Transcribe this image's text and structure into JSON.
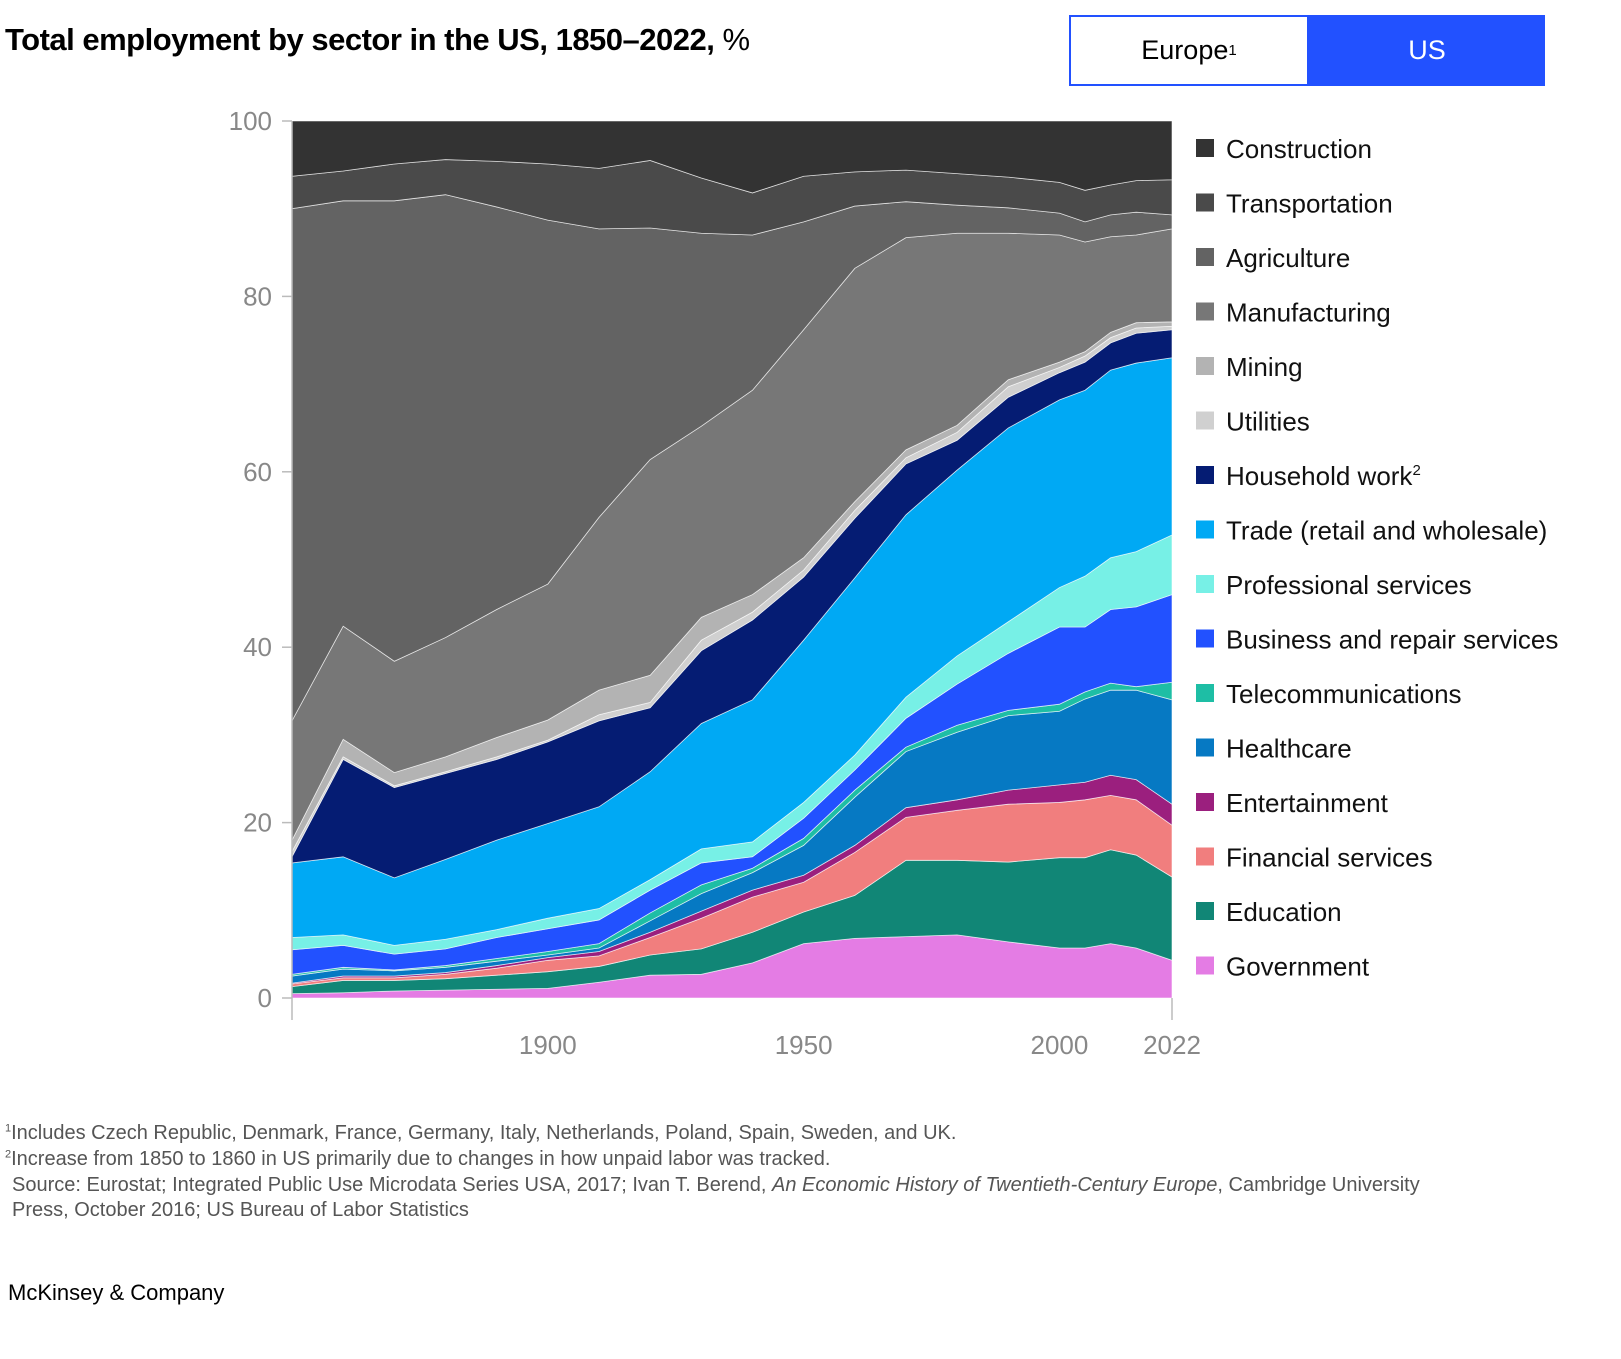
{
  "title": {
    "bold": "Total employment by sector in the US, 1850–2022,",
    "unit": " %"
  },
  "toggle": {
    "europe": "Europe",
    "europe_sup": "1",
    "us": "US",
    "selected": "US",
    "accent": "#2251ff"
  },
  "chart_data": {
    "type": "area",
    "stacked": true,
    "title": "Total employment by sector in the US, 1850–2022, %",
    "xlim": [
      1850,
      2022
    ],
    "ylim": [
      0,
      100
    ],
    "y_ticks": [
      "0",
      "20",
      "40",
      "60",
      "80",
      "100"
    ],
    "x_ticks": [
      "1900",
      "1950",
      "2000",
      "2022"
    ],
    "x_tick_values": [
      1900,
      1950,
      2000,
      2022
    ],
    "legend_position": "right",
    "x": [
      1850,
      1860,
      1870,
      1880,
      1890,
      1900,
      1910,
      1920,
      1930,
      1940,
      1950,
      1960,
      1970,
      1980,
      1990,
      2000,
      2005,
      2010,
      2015,
      2022
    ],
    "series": [
      {
        "name": "Government",
        "color": "#e47ce4",
        "values": [
          0.5,
          0.6,
          0.8,
          0.9,
          1.0,
          1.1,
          1.8,
          2.6,
          2.7,
          4.0,
          6.2,
          6.8,
          7.0,
          7.2,
          6.4,
          5.7,
          5.7,
          6.2,
          5.7,
          4.3
        ]
      },
      {
        "name": "Education",
        "color": "#118676",
        "values": [
          0.8,
          1.4,
          1.2,
          1.3,
          1.6,
          1.9,
          1.8,
          2.3,
          2.9,
          3.5,
          3.6,
          4.9,
          8.7,
          8.5,
          9.1,
          10.3,
          10.3,
          10.7,
          10.6,
          9.5
        ]
      },
      {
        "name": "Financial services",
        "color": "#f17e7e",
        "values": [
          0.3,
          0.3,
          0.3,
          0.5,
          0.8,
          1.3,
          1.2,
          2.0,
          3.5,
          4.0,
          3.4,
          4.9,
          4.9,
          5.7,
          6.6,
          6.3,
          6.6,
          6.2,
          6.3,
          5.9
        ]
      },
      {
        "name": "Entertainment",
        "color": "#9b1f7e",
        "values": [
          0.1,
          0.2,
          0.2,
          0.2,
          0.3,
          0.3,
          0.5,
          0.6,
          0.8,
          0.8,
          0.8,
          0.8,
          1.1,
          1.2,
          1.6,
          2.0,
          2.0,
          2.3,
          2.3,
          2.4
        ]
      },
      {
        "name": "Healthcare",
        "color": "#0679c3",
        "values": [
          0.8,
          0.8,
          0.6,
          0.6,
          0.5,
          0.3,
          0.4,
          1.3,
          2.0,
          2.0,
          3.4,
          5.5,
          6.4,
          7.7,
          8.5,
          8.4,
          9.5,
          9.7,
          10.2,
          11.9
        ]
      },
      {
        "name": "Telecommunications",
        "color": "#1ebea5",
        "values": [
          0.2,
          0.2,
          0.1,
          0.2,
          0.3,
          0.4,
          0.5,
          0.9,
          1.0,
          0.5,
          0.8,
          0.8,
          0.5,
          0.8,
          0.6,
          0.8,
          0.8,
          0.8,
          0.4,
          2.0
        ]
      },
      {
        "name": "Business and repair services",
        "color": "#2251ff",
        "values": [
          2.8,
          2.5,
          1.8,
          1.9,
          2.4,
          2.6,
          2.7,
          2.6,
          2.5,
          1.3,
          2.3,
          2.3,
          3.3,
          4.7,
          6.5,
          8.8,
          7.4,
          8.4,
          9.1,
          10.0
        ]
      },
      {
        "name": "Professional services",
        "color": "#77f0e6",
        "values": [
          1.4,
          1.2,
          1.0,
          1.1,
          0.9,
          1.2,
          1.3,
          1.2,
          1.6,
          1.7,
          1.8,
          1.7,
          2.4,
          3.2,
          3.6,
          4.5,
          5.8,
          5.9,
          6.3,
          6.8
        ]
      },
      {
        "name": "Trade (retail and wholesale)",
        "color": "#00a9f4",
        "values": [
          8.5,
          8.9,
          7.7,
          9.1,
          10.2,
          10.8,
          11.6,
          12.3,
          14.3,
          16.2,
          18.5,
          20.2,
          20.8,
          21.2,
          22.1,
          21.4,
          21.2,
          21.4,
          21.5,
          20.2
        ]
      },
      {
        "name": "Household work",
        "sup": "2",
        "color": "#051c73",
        "values": [
          0.7,
          11.1,
          10.3,
          9.8,
          9.2,
          9.3,
          9.8,
          7.3,
          8.3,
          9.1,
          7.2,
          6.8,
          5.8,
          3.4,
          3.5,
          3.1,
          3.2,
          3.1,
          3.4,
          3.2
        ]
      },
      {
        "name": "Utilities",
        "color": "#d0d0d0",
        "values": [
          0.6,
          0.3,
          0.2,
          0.2,
          0.3,
          0.2,
          0.7,
          0.6,
          1.2,
          0.9,
          0.8,
          0.9,
          0.7,
          0.9,
          1.2,
          0.6,
          0.7,
          0.6,
          0.6,
          0.4
        ]
      },
      {
        "name": "Mining",
        "color": "#b3b3b3",
        "values": [
          1.3,
          2.0,
          1.5,
          1.7,
          2.2,
          2.3,
          2.8,
          3.1,
          2.6,
          2.0,
          1.4,
          1.0,
          0.9,
          0.8,
          0.8,
          0.6,
          0.5,
          0.6,
          0.6,
          0.5
        ]
      },
      {
        "name": "Manufacturing",
        "color": "#777777",
        "values": [
          13.6,
          12.9,
          12.7,
          13.6,
          14.6,
          15.5,
          19.7,
          24.6,
          21.8,
          23.3,
          26.0,
          26.6,
          24.2,
          21.9,
          16.7,
          14.5,
          12.5,
          10.9,
          10.0,
          10.6
        ]
      },
      {
        "name": "Agriculture",
        "color": "#636363",
        "values": [
          58.4,
          48.5,
          52.5,
          50.5,
          45.9,
          41.5,
          32.9,
          26.4,
          22.0,
          17.7,
          12.3,
          7.1,
          4.1,
          3.2,
          2.9,
          2.5,
          2.3,
          2.5,
          2.6,
          1.6
        ]
      },
      {
        "name": "Transportation",
        "color": "#4a4a4a",
        "values": [
          3.7,
          3.4,
          4.2,
          4.0,
          5.2,
          6.4,
          6.9,
          7.7,
          6.3,
          4.8,
          5.2,
          3.9,
          3.6,
          3.6,
          3.5,
          3.5,
          3.6,
          3.4,
          3.6,
          4.0
        ]
      },
      {
        "name": "Construction",
        "color": "#333333",
        "values": [
          6.3,
          5.7,
          4.9,
          4.4,
          4.6,
          4.9,
          5.4,
          4.5,
          6.5,
          8.2,
          6.3,
          5.8,
          5.6,
          6.0,
          6.4,
          7.0,
          7.9,
          7.3,
          6.8,
          6.7
        ]
      }
    ]
  },
  "footnotes": {
    "note1_sup": "1",
    "note1": "Includes Czech Republic, Denmark, France, Germany, Italy, Netherlands, Poland, Spain, Sweden, and UK.",
    "note2_sup": "2",
    "note2": "Increase from 1850 to 1860 in US primarily due to changes in how unpaid labor was tracked.",
    "source_a": "Source: Eurostat; Integrated Public Use Microdata Series USA, 2017; Ivan T. Berend, ",
    "source_italic": "An Economic History of Twentieth-Century Europe",
    "source_b": ", Cambridge University",
    "source_c": "Press, October 2016; US Bureau of Labor Statistics"
  },
  "brand": "McKinsey & Company"
}
